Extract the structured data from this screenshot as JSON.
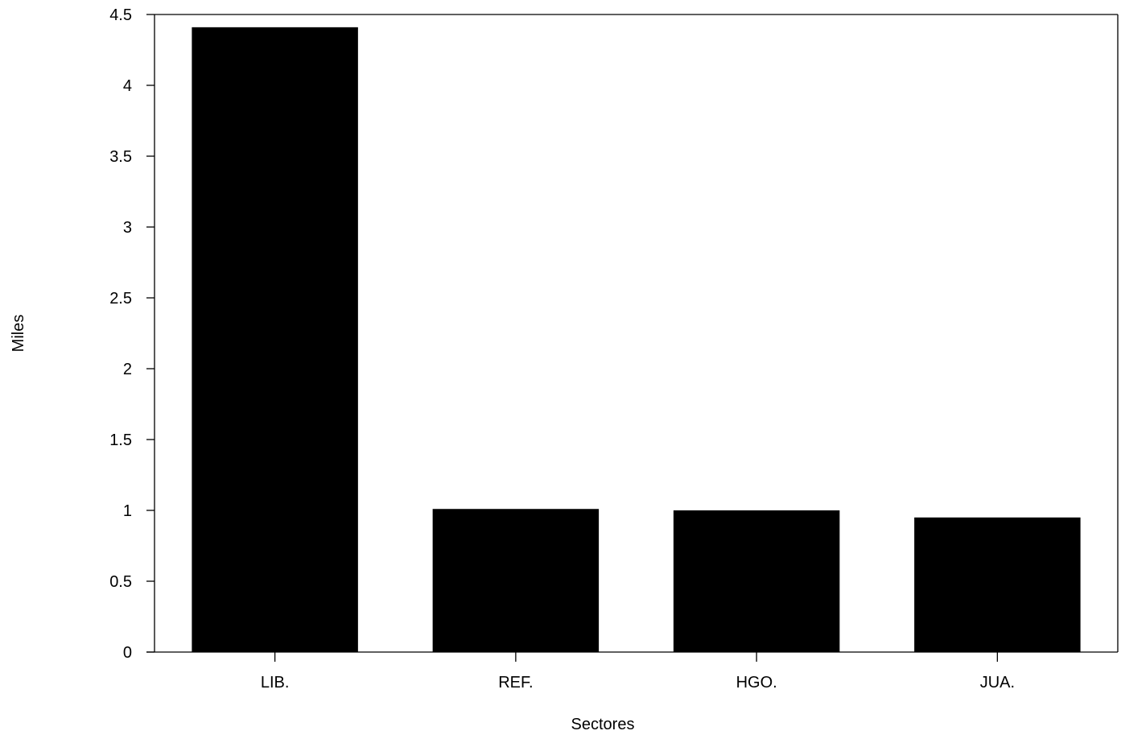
{
  "chart_data": {
    "type": "bar",
    "categories": [
      "LIB.",
      "REF.",
      "HGO.",
      "JUA."
    ],
    "values": [
      4.41,
      1.01,
      1.0,
      0.95
    ],
    "xlabel": "Sectores",
    "ylabel": "Miles",
    "ylim": [
      0,
      4.5
    ],
    "yticks": [
      0,
      0.5,
      1,
      1.5,
      2,
      2.5,
      3,
      3.5,
      4,
      4.5
    ],
    "ytick_labels": [
      "0",
      "0.5",
      "1",
      "1.5",
      "2",
      "2.5",
      "3",
      "3.5",
      "4",
      "4.5"
    ],
    "grid": false,
    "colors": {
      "bar": "#000000",
      "axis": "#000000",
      "background": "#ffffff"
    }
  }
}
